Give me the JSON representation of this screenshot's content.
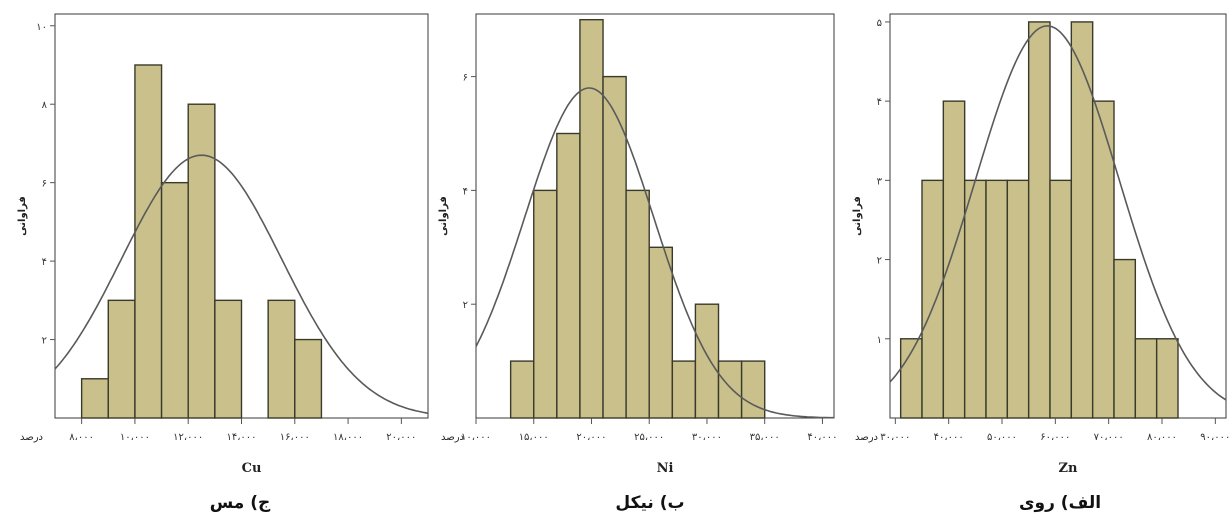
{
  "chart_data": [
    {
      "type": "bar",
      "caption": "ج) مس",
      "xlabel": "Cu",
      "ylabel": "فراوانی",
      "x_unit": "درصد",
      "x_ticks": [
        8000,
        10000,
        12000,
        14000,
        16000,
        18000,
        20000
      ],
      "x_tick_labels": [
        "۸،۰۰۰",
        "۱۰،۰۰۰",
        "۱۲،۰۰۰",
        "۱۴،۰۰۰",
        "۱۶،۰۰۰",
        "۱۸،۰۰۰",
        "۲۰،۰۰۰"
      ],
      "y_ticks": [
        2,
        4,
        6,
        8,
        10
      ],
      "y_tick_labels": [
        "۲",
        "۴",
        "۶",
        "۸",
        "۱۰"
      ],
      "xlim": [
        7000,
        21000
      ],
      "ylim": [
        0,
        10.3
      ],
      "bins": [
        {
          "start": 8000,
          "end": 9000,
          "count": 1
        },
        {
          "start": 9000,
          "end": 10000,
          "count": 3
        },
        {
          "start": 10000,
          "end": 11000,
          "count": 9
        },
        {
          "start": 11000,
          "end": 12000,
          "count": 6
        },
        {
          "start": 12000,
          "end": 13000,
          "count": 8
        },
        {
          "start": 13000,
          "end": 14000,
          "count": 3
        },
        {
          "start": 14000,
          "end": 15000,
          "count": 0
        },
        {
          "start": 15000,
          "end": 16000,
          "count": 3
        },
        {
          "start": 16000,
          "end": 17000,
          "count": 2
        }
      ],
      "normal_curve": {
        "mean": 12500,
        "sd": 3000,
        "peak": 6.7
      }
    },
    {
      "type": "bar",
      "caption": "ب) نیکل",
      "xlabel": "Ni",
      "ylabel": "فراوانی",
      "x_unit": "درصد",
      "x_ticks": [
        10000,
        15000,
        20000,
        25000,
        30000,
        35000,
        40000
      ],
      "x_tick_labels": [
        "۱۰،۰۰۰",
        "۱۵،۰۰۰",
        "۲۰،۰۰۰",
        "۲۵،۰۰۰",
        "۳۰،۰۰۰",
        "۳۵،۰۰۰",
        "۴۰،۰۰۰"
      ],
      "y_ticks": [
        2,
        4,
        6
      ],
      "y_tick_labels": [
        "۲",
        "۴",
        "۶"
      ],
      "xlim": [
        10000,
        41000
      ],
      "ylim": [
        0,
        7.1
      ],
      "bins": [
        {
          "start": 13000,
          "end": 15000,
          "count": 1
        },
        {
          "start": 15000,
          "end": 17000,
          "count": 4
        },
        {
          "start": 17000,
          "end": 19000,
          "count": 5
        },
        {
          "start": 19000,
          "end": 21000,
          "count": 7
        },
        {
          "start": 21000,
          "end": 23000,
          "count": 6
        },
        {
          "start": 23000,
          "end": 25000,
          "count": 4
        },
        {
          "start": 25000,
          "end": 27000,
          "count": 3
        },
        {
          "start": 27000,
          "end": 29000,
          "count": 1
        },
        {
          "start": 29000,
          "end": 31000,
          "count": 2
        },
        {
          "start": 31000,
          "end": 33000,
          "count": 1
        },
        {
          "start": 33000,
          "end": 35000,
          "count": 1
        }
      ],
      "normal_curve": {
        "mean": 19800,
        "sd": 5600,
        "peak": 5.8
      }
    },
    {
      "type": "bar",
      "caption": "الف) روی",
      "xlabel": "Zn",
      "ylabel": "فراوانی",
      "x_unit": "درصد",
      "x_ticks": [
        30000,
        40000,
        50000,
        60000,
        70000,
        80000,
        90000
      ],
      "x_tick_labels": [
        "۳۰،۰۰۰",
        "۴۰،۰۰۰",
        "۵۰،۰۰۰",
        "۶۰،۰۰۰",
        "۷۰،۰۰۰",
        "۸۰،۰۰۰",
        "۹۰،۰۰۰"
      ],
      "y_ticks": [
        1,
        2,
        3,
        4,
        5
      ],
      "y_tick_labels": [
        "۱",
        "۲",
        "۳",
        "۴",
        "۵"
      ],
      "xlim": [
        29000,
        92000
      ],
      "ylim": [
        0,
        5.1
      ],
      "bins": [
        {
          "start": 31000,
          "end": 35000,
          "count": 1
        },
        {
          "start": 35000,
          "end": 39000,
          "count": 3
        },
        {
          "start": 39000,
          "end": 43000,
          "count": 4
        },
        {
          "start": 43000,
          "end": 47000,
          "count": 3
        },
        {
          "start": 47000,
          "end": 51000,
          "count": 3
        },
        {
          "start": 51000,
          "end": 55000,
          "count": 3
        },
        {
          "start": 55000,
          "end": 59000,
          "count": 5
        },
        {
          "start": 59000,
          "end": 63000,
          "count": 3
        },
        {
          "start": 63000,
          "end": 67000,
          "count": 5
        },
        {
          "start": 67000,
          "end": 71000,
          "count": 4
        },
        {
          "start": 71000,
          "end": 75000,
          "count": 2
        },
        {
          "start": 75000,
          "end": 79000,
          "count": 1
        },
        {
          "start": 79000,
          "end": 83000,
          "count": 1
        }
      ],
      "normal_curve": {
        "mean": 58500,
        "sd": 13500,
        "peak": 4.95
      }
    }
  ]
}
